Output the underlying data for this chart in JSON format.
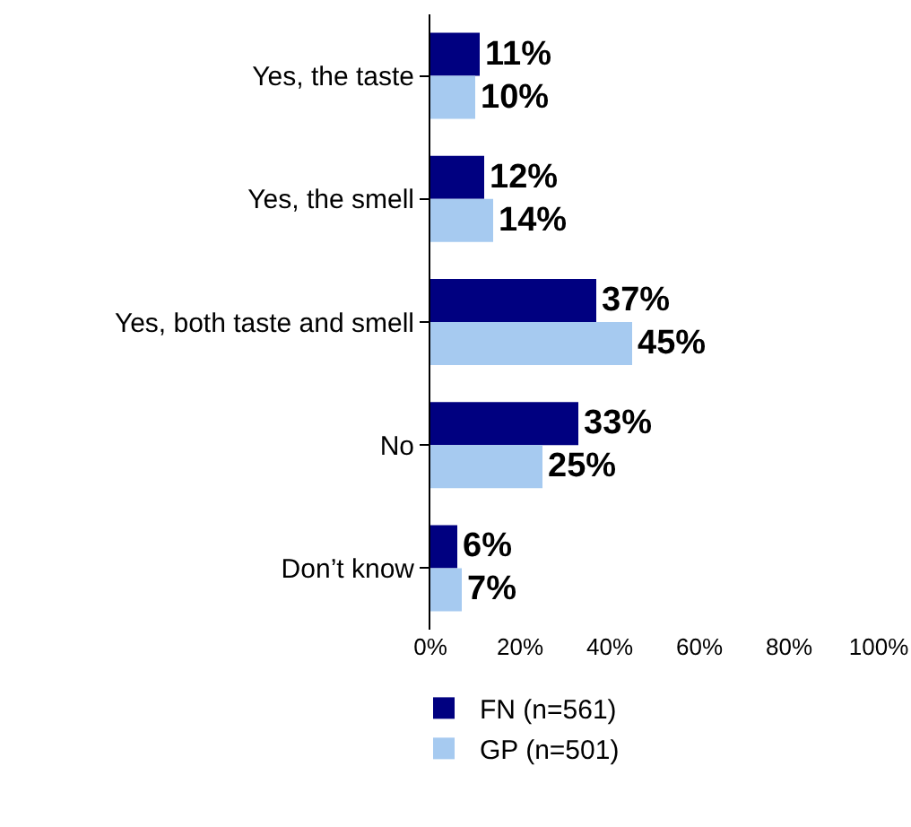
{
  "chart_data": {
    "type": "bar",
    "orientation": "horizontal",
    "categories": [
      "Yes, the taste",
      "Yes, the smell",
      "Yes, both taste and smell",
      "No",
      "Don’t know"
    ],
    "series": [
      {
        "name": "FN (n=561)",
        "color": "#000080",
        "values": [
          11,
          12,
          37,
          33,
          6
        ],
        "value_labels": [
          "11%",
          "12%",
          "37%",
          "33%",
          "6%"
        ]
      },
      {
        "name": "GP (n=501)",
        "color": "#a6caf0",
        "values": [
          10,
          14,
          45,
          25,
          7
        ],
        "value_labels": [
          "10%",
          "14%",
          "45%",
          "25%",
          "7%"
        ]
      }
    ],
    "xlim": [
      0,
      100
    ],
    "xticks": [
      {
        "value": 0,
        "label": "0%"
      },
      {
        "value": 20,
        "label": "20%"
      },
      {
        "value": 40,
        "label": "40%"
      },
      {
        "value": 60,
        "label": "60%"
      },
      {
        "value": 80,
        "label": "80%"
      },
      {
        "value": 100,
        "label": "100%"
      }
    ],
    "grid": false,
    "legend": "bottom"
  }
}
